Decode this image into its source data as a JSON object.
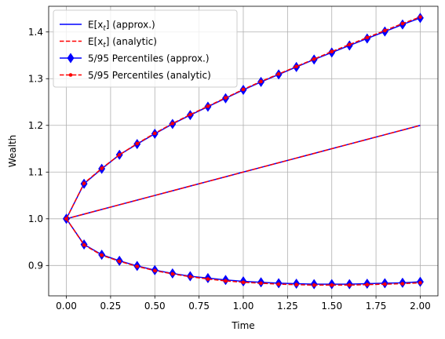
{
  "chart_data": {
    "type": "line",
    "title": "",
    "xlabel": "Time",
    "ylabel": "Wealth",
    "xlim": [
      -0.1,
      2.1
    ],
    "ylim": [
      0.835,
      1.455
    ],
    "grid": true,
    "legend_position": "top-left",
    "xticks": [
      "0.00",
      "0.25",
      "0.50",
      "0.75",
      "1.00",
      "1.25",
      "1.50",
      "1.75",
      "2.00"
    ],
    "xtick_values": [
      0,
      0.25,
      0.5,
      0.75,
      1.0,
      1.25,
      1.5,
      1.75,
      2.0
    ],
    "yticks": [
      "0.9",
      "1.0",
      "1.1",
      "1.2",
      "1.3",
      "1.4"
    ],
    "ytick_values": [
      0.9,
      1.0,
      1.1,
      1.2,
      1.3,
      1.4
    ],
    "x": [
      0.0,
      0.1,
      0.2,
      0.3,
      0.4,
      0.5,
      0.6,
      0.7,
      0.8,
      0.9,
      1.0,
      1.1,
      1.2,
      1.3,
      1.4,
      1.5,
      1.6,
      1.7,
      1.8,
      1.9,
      2.0
    ],
    "series": [
      {
        "name": "E[x_t] (approx.)",
        "legend_main": "E[x",
        "legend_sub": "t",
        "legend_rest": "] (approx.)",
        "color": "#0000ff",
        "style": "solid",
        "marker": "none",
        "values": [
          1.0,
          1.01,
          1.02,
          1.03,
          1.04,
          1.05,
          1.06,
          1.07,
          1.08,
          1.09,
          1.1,
          1.11,
          1.12,
          1.13,
          1.14,
          1.15,
          1.16,
          1.17,
          1.18,
          1.19,
          1.2
        ]
      },
      {
        "name": "E[x_t] (analytic)",
        "legend_main": "E[x",
        "legend_sub": "t",
        "legend_rest": "] (analytic)",
        "color": "#ff0000",
        "style": "dashed",
        "marker": "none",
        "values": [
          1.0,
          1.01,
          1.02,
          1.03,
          1.04,
          1.05,
          1.06,
          1.07,
          1.08,
          1.09,
          1.1,
          1.11,
          1.12,
          1.13,
          1.14,
          1.15,
          1.16,
          1.17,
          1.18,
          1.19,
          1.2
        ]
      },
      {
        "name": "5/95 Percentiles (approx.)",
        "legend_main": "5/95 Percentiles (approx.)",
        "color": "#0000ff",
        "style": "solid",
        "marker": "diamond",
        "upper": [
          1.0,
          1.075,
          1.107,
          1.137,
          1.16,
          1.182,
          1.203,
          1.222,
          1.24,
          1.258,
          1.276,
          1.293,
          1.309,
          1.325,
          1.341,
          1.356,
          1.371,
          1.386,
          1.401,
          1.416,
          1.43
        ],
        "lower": [
          1.0,
          0.945,
          0.923,
          0.91,
          0.899,
          0.89,
          0.883,
          0.877,
          0.873,
          0.869,
          0.866,
          0.864,
          0.862,
          0.861,
          0.86,
          0.86,
          0.86,
          0.861,
          0.862,
          0.863,
          0.865
        ]
      },
      {
        "name": "5/95 Percentiles (analytic)",
        "legend_main": "5/95 Percentiles (analytic)",
        "color": "#ff0000",
        "style": "dashed",
        "marker": "dot",
        "upper": [
          1.0,
          1.076,
          1.108,
          1.137,
          1.161,
          1.183,
          1.204,
          1.223,
          1.241,
          1.259,
          1.277,
          1.294,
          1.31,
          1.326,
          1.342,
          1.358,
          1.373,
          1.388,
          1.403,
          1.418,
          1.432
        ],
        "lower": [
          1.0,
          0.944,
          0.922,
          0.909,
          0.898,
          0.889,
          0.882,
          0.876,
          0.871,
          0.867,
          0.864,
          0.862,
          0.86,
          0.859,
          0.858,
          0.858,
          0.858,
          0.859,
          0.86,
          0.861,
          0.863
        ]
      }
    ]
  }
}
